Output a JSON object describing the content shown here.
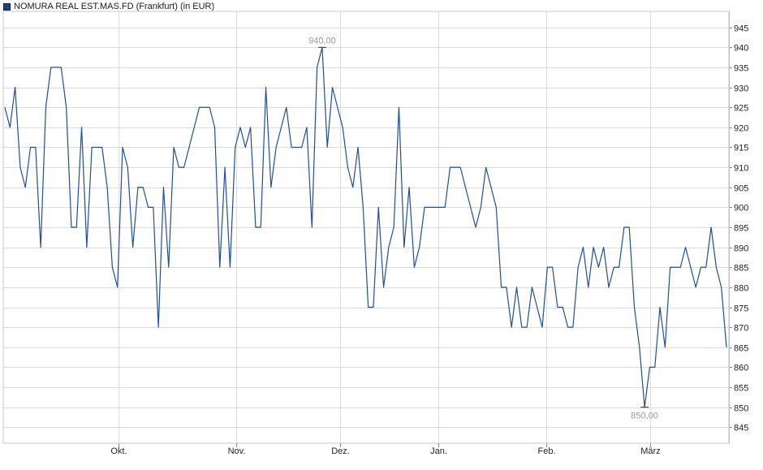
{
  "legend": {
    "label": "NOMURA REAL EST.MAS.FD (Frankfurt) (in EUR)",
    "color": "#1f4e9a"
  },
  "chart_data": {
    "type": "line",
    "title": "",
    "xlabel": "",
    "ylabel": "",
    "ylim": [
      841,
      949
    ],
    "y_ticks": [
      845,
      850,
      855,
      860,
      865,
      870,
      875,
      880,
      885,
      890,
      895,
      900,
      905,
      910,
      915,
      920,
      925,
      930,
      935,
      940,
      945
    ],
    "x_ticks": [
      "Okt.",
      "Nov.",
      "Dez.",
      "Jan.",
      "Feb.",
      "März"
    ],
    "grid": true,
    "line_color": "#1f4e9a",
    "series": [
      {
        "values": [
          925,
          920,
          930,
          910,
          905,
          915,
          915,
          890,
          925,
          935,
          935,
          935,
          925,
          895,
          895,
          920,
          890,
          915,
          915,
          915,
          905,
          885,
          880,
          915,
          910,
          890,
          905,
          905,
          900,
          900,
          870,
          905,
          885,
          915,
          910,
          910,
          915,
          920,
          925,
          925,
          925,
          920,
          885,
          910,
          885,
          915,
          920,
          915,
          920,
          895,
          895,
          930,
          905,
          915,
          920,
          925,
          915,
          915,
          915,
          920,
          895,
          935,
          940,
          915,
          930,
          925,
          920,
          910,
          905,
          915,
          900,
          875,
          875,
          900,
          880,
          890,
          895,
          925,
          890,
          905,
          885,
          890,
          900,
          900,
          900,
          900,
          900,
          910,
          910,
          910,
          905,
          900,
          895,
          900,
          910,
          905,
          900,
          880,
          880,
          870,
          880,
          870,
          870,
          880,
          875,
          870,
          885,
          885,
          875,
          875,
          870,
          870,
          885,
          890,
          880,
          890,
          885,
          890,
          880,
          885,
          885,
          895,
          895,
          875,
          865,
          850,
          860,
          860,
          875,
          865,
          885,
          885,
          885,
          890,
          885,
          880,
          885,
          885,
          895,
          885,
          880,
          865
        ]
      }
    ],
    "annotations": [
      {
        "text": "940,00",
        "point_index": 62,
        "value": 940,
        "position": "above"
      },
      {
        "text": "850,00",
        "point_index": 125,
        "value": 850,
        "position": "below"
      }
    ]
  }
}
